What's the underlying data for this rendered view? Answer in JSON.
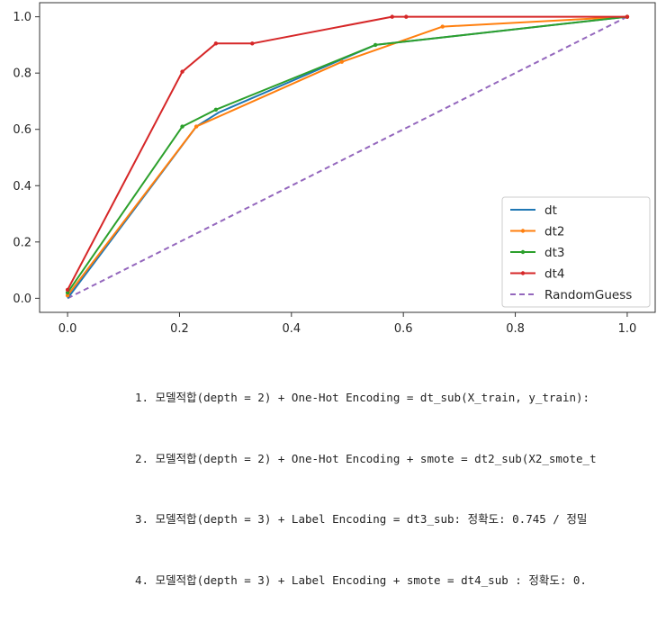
{
  "chart_data": {
    "type": "line",
    "title": "",
    "xlabel": "",
    "ylabel": "",
    "xlim": [
      -0.05,
      1.05
    ],
    "ylim": [
      -0.05,
      1.05
    ],
    "xticks": [
      "0.0",
      "0.2",
      "0.4",
      "0.6",
      "0.8",
      "1.0"
    ],
    "yticks": [
      "0.0",
      "0.2",
      "0.4",
      "0.6",
      "0.8",
      "1.0"
    ],
    "legend_position": "lower-right",
    "grid": false,
    "series": [
      {
        "name": "dt",
        "color": "#1f77b4",
        "dashed": false,
        "markers": false,
        "points": [
          [
            0,
            0
          ],
          [
            0.23,
            0.61
          ],
          [
            0.27,
            0.66
          ],
          [
            0.55,
            0.9
          ],
          [
            1.0,
            1.0
          ]
        ]
      },
      {
        "name": "dt2",
        "color": "#ff7f0e",
        "dashed": false,
        "markers": true,
        "points": [
          [
            0,
            0.01
          ],
          [
            0.23,
            0.61
          ],
          [
            0.49,
            0.84
          ],
          [
            0.67,
            0.965
          ],
          [
            1.0,
            1.0
          ]
        ]
      },
      {
        "name": "dt3",
        "color": "#2ca02c",
        "dashed": false,
        "markers": true,
        "points": [
          [
            0,
            0.02
          ],
          [
            0.205,
            0.61
          ],
          [
            0.265,
            0.67
          ],
          [
            0.55,
            0.9
          ],
          [
            1.0,
            1.0
          ]
        ]
      },
      {
        "name": "dt4",
        "color": "#d62728",
        "dashed": false,
        "markers": true,
        "points": [
          [
            0,
            0.03
          ],
          [
            0.205,
            0.805
          ],
          [
            0.265,
            0.905
          ],
          [
            0.33,
            0.905
          ],
          [
            0.58,
            1.0
          ],
          [
            0.605,
            1.0
          ],
          [
            1.0,
            1.0
          ]
        ]
      },
      {
        "name": "RandomGuess",
        "color": "#9467bd",
        "dashed": true,
        "markers": false,
        "points": [
          [
            0,
            0
          ],
          [
            1,
            1
          ]
        ]
      }
    ]
  },
  "notes": [
    "1. 모델적합(depth = 2) + One-Hot Encoding = dt_sub(X_train, y_train):",
    "2. 모델적합(depth = 2) + One-Hot Encoding + smote = dt2_sub(X2_smote_t",
    "3. 모델적합(depth = 3) + Label Encoding = dt3_sub: 정확도: 0.745 / 정밀",
    "4. 모델적합(depth = 3) + Label Encoding + smote = dt4_sub : 정확도: 0."
  ]
}
